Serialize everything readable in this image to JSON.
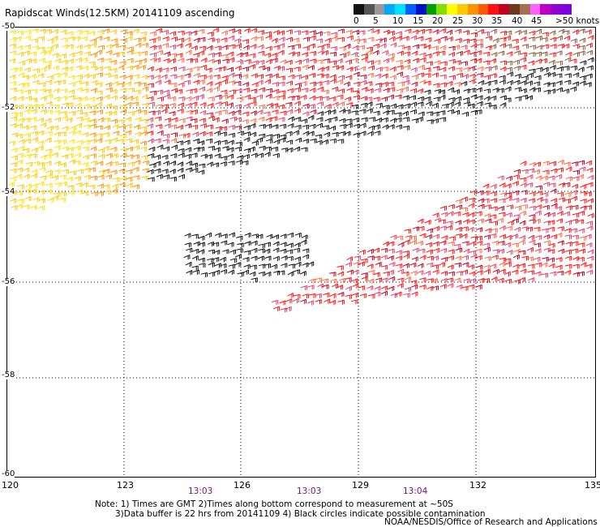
{
  "title": "Rapidscat Winds(12.5KM) 20141109 ascending",
  "legend": {
    "colors": [
      "#111111",
      "#555555",
      "#999999",
      "#00a8ff",
      "#00e0ff",
      "#0060ff",
      "#0010c8",
      "#00a000",
      "#80e000",
      "#ffff00",
      "#ffc800",
      "#ff9000",
      "#ff5a00",
      "#ff1010",
      "#c00020",
      "#6a3a1a",
      "#a07050",
      "#ff60ff",
      "#c000c0",
      "#9000d0",
      "#8000e0"
    ],
    "labels": [
      "0",
      "5",
      "10",
      "15",
      "20",
      "25",
      "30",
      "35",
      "40",
      "45",
      ">50 knots"
    ]
  },
  "axes": {
    "lat_labels": [
      "-50",
      "-52",
      "-54",
      "-56",
      "-58",
      "-60"
    ],
    "lon_labels": [
      "120",
      "123",
      "126",
      "129",
      "132",
      "135"
    ]
  },
  "times": [
    "13:03",
    "13:03",
    "13:04"
  ],
  "notes": {
    "line1": "Note: 1) Times are GMT 2)Times along bottom correspond to measurement at ~50S",
    "line2": "3)Data buffer is 22 hrs from 20141109 4) Black circles indicate possible contamination"
  },
  "credit": "NOAA/NESDIS/Office of Research and Applications"
}
